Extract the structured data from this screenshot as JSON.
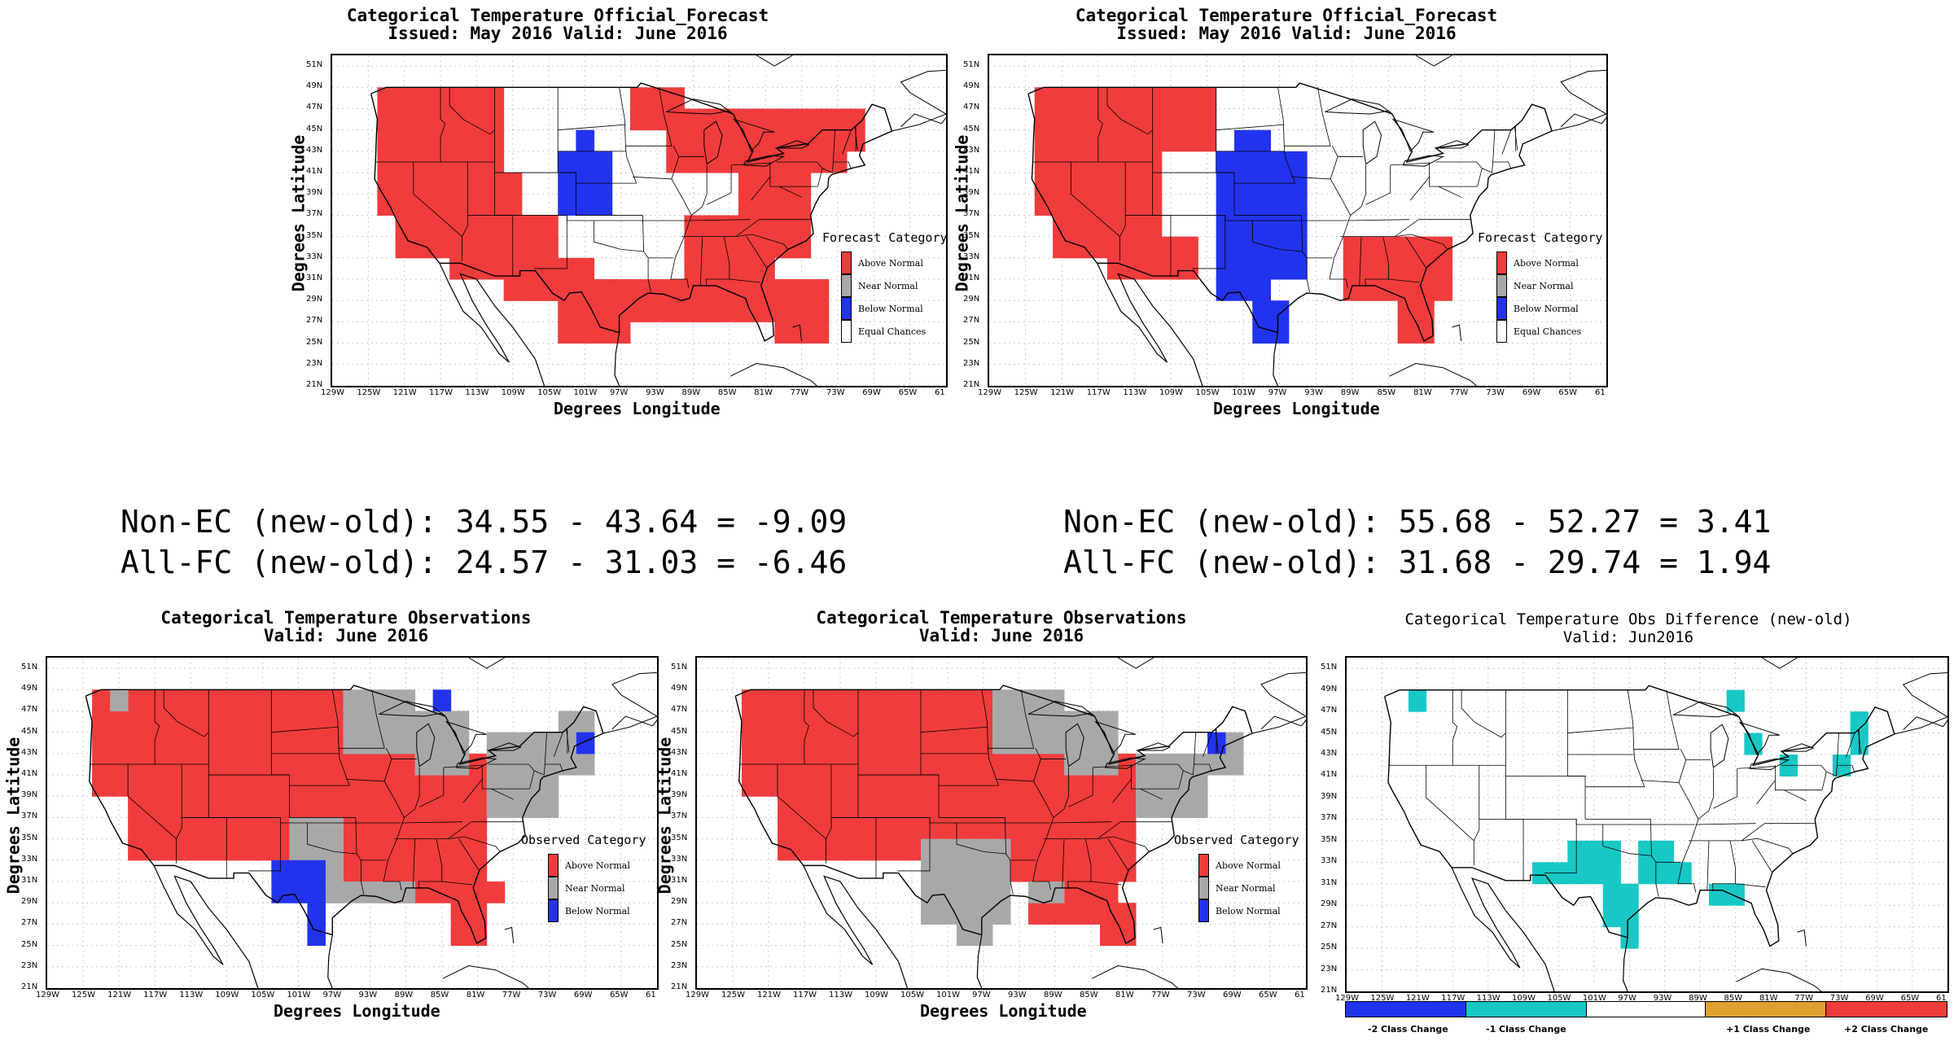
{
  "colors": {
    "above": "#f03c3c",
    "near": "#a8a8a8",
    "below": "#2233ee",
    "equal": "#ffffff",
    "minus1": "#17c8c4",
    "minus2": "#2233ee",
    "plus1": "#e0a030",
    "plus2": "#f03c3c"
  },
  "lat_ticks": [
    "51N",
    "49N",
    "47N",
    "45N",
    "43N",
    "41N",
    "39N",
    "37N",
    "35N",
    "33N",
    "31N",
    "29N",
    "27N",
    "25N",
    "23N",
    "21N"
  ],
  "lon_ticks": [
    "129W",
    "125W",
    "121W",
    "117W",
    "113W",
    "109W",
    "105W",
    "101W",
    "97W",
    "93W",
    "89W",
    "85W",
    "81W",
    "77W",
    "73W",
    "69W",
    "65W",
    "61"
  ],
  "axis": {
    "x_label": "Degrees Longitude",
    "y_label": "Degrees Latitude"
  },
  "forecast_old": {
    "title1": "Categorical Temperature Official_Forecast",
    "title2": "Issued: May 2016 Valid: June 2016",
    "legend_title": "Forecast Category",
    "legend": [
      "Above Normal",
      "Near Normal",
      "Below Normal",
      "Equal Chances"
    ]
  },
  "forecast_new": {
    "title1": "Categorical Temperature Official_Forecast",
    "title2": "Issued: May 2016 Valid: June 2016",
    "legend_title": "Forecast Category",
    "legend": [
      "Above Normal",
      "Near Normal",
      "Below Normal",
      "Equal Chances"
    ]
  },
  "stats_left": {
    "line1": "Non-EC (new-old): 34.55 - 43.64 = -9.09",
    "line2": "All-FC (new-old): 24.57 - 31.03 = -6.46"
  },
  "stats_right": {
    "line1": "Non-EC (new-old): 55.68 - 52.27 = 3.41",
    "line2": "All-FC (new-old): 31.68 - 29.74 = 1.94"
  },
  "obs_old": {
    "title1": "Categorical Temperature Observations",
    "title2": "Valid: June 2016",
    "legend_title": "Observed Category",
    "legend": [
      "Above Normal",
      "Near Normal",
      "Below Normal"
    ]
  },
  "obs_new": {
    "title1": "Categorical Temperature Observations",
    "title2": "Valid: June 2016",
    "legend_title": "Observed Category",
    "legend": [
      "Above Normal",
      "Near Normal",
      "Below Normal"
    ]
  },
  "diff": {
    "title1": "Categorical Temperature Obs Difference (new-old)",
    "title2": "Valid: Jun2016",
    "colorbar": [
      "-2 Class Change",
      "-1 Class Change",
      "+1 Class Change",
      "+2 Class Change"
    ]
  }
}
